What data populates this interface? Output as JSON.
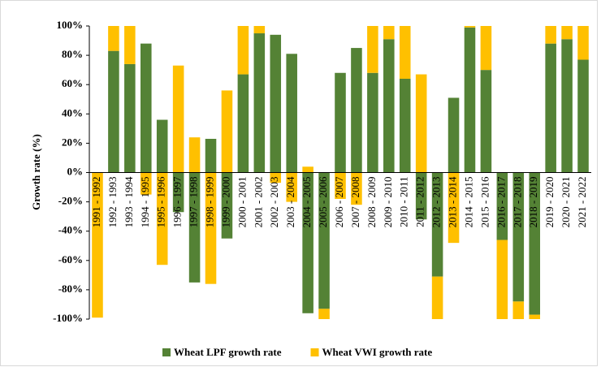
{
  "chart_data": {
    "type": "stacked_bar",
    "y_label": "Growth rate (%)",
    "categories": [
      "1991 - 1992",
      "1992 - 1993",
      "1993 - 1994",
      "1994 - 1995",
      "1995 - 1996",
      "1996 - 1997",
      "1997 - 1998",
      "1998 - 1999",
      "1999 - 2000",
      "2000 - 2001",
      "2001 - 2002",
      "2002 - 2003",
      "2003 - 2004",
      "2004 - 2005",
      "2005 - 2006",
      "2006 - 2007",
      "2007 - 2008",
      "2008 - 2009",
      "2009 - 2010",
      "2010 - 2011",
      "2011 - 2012",
      "2012 - 2013",
      "2013 - 2014",
      "2014 - 2015",
      "2015 - 2016",
      "2016 - 2017",
      "2017 - 2018",
      "2018 - 2019",
      "2019 - 2020",
      "2020 - 2021",
      "2021 - 2022"
    ],
    "series": [
      {
        "name": "Wheat LPF growth rate",
        "color": "#548235",
        "values": [
          0,
          83,
          74,
          88,
          36,
          -27,
          -75,
          23,
          -45,
          67,
          95,
          94,
          81,
          -96,
          -93,
          68,
          85,
          68,
          91,
          64,
          -32,
          -71,
          51,
          99,
          70,
          -46,
          -88,
          -97,
          88,
          91,
          77
        ]
      },
      {
        "name": "Wheat VWI growth rate",
        "color": "#ffc000",
        "values": [
          -99,
          17,
          26,
          -15,
          -63,
          73,
          24,
          -76,
          56,
          33,
          5,
          -7,
          -20,
          4,
          -7,
          -18,
          -22,
          32,
          9,
          36,
          67,
          -29,
          -48,
          1,
          30,
          -54,
          -12,
          -3,
          12,
          9,
          23
        ]
      }
    ],
    "ylim": [
      -100,
      100
    ],
    "yticks": [
      {
        "value": -100,
        "label": "-100%"
      },
      {
        "value": -80,
        "label": "-80%"
      },
      {
        "value": -60,
        "label": "-60%"
      },
      {
        "value": -40,
        "label": "-40%"
      },
      {
        "value": -20,
        "label": "-20%"
      },
      {
        "value": 0,
        "label": "0%"
      },
      {
        "value": 20,
        "label": "20%"
      },
      {
        "value": 40,
        "label": "40%"
      },
      {
        "value": 60,
        "label": "60%"
      },
      {
        "value": 80,
        "label": "80%"
      },
      {
        "value": 100,
        "label": "100%"
      }
    ],
    "legend": "bottom"
  }
}
